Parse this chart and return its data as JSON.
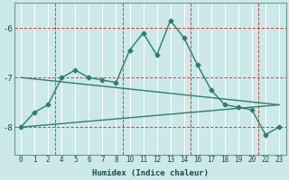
{
  "xlabel": "Humidex (Indice chaleur)",
  "bg_color": "#cce8e8",
  "line_color": "#2d7d70",
  "grid_color": "#ffffff",
  "red_line_color": "#cc4444",
  "xtick_positions": [
    0,
    1,
    2,
    3,
    4,
    5,
    6,
    7,
    8,
    9,
    10,
    11,
    12,
    13,
    14,
    15,
    16,
    17,
    18,
    19
  ],
  "xtick_labels": [
    "0",
    "1",
    "2",
    "4",
    "5",
    "6",
    "7",
    "8",
    "10",
    "11",
    "12",
    "13",
    "14",
    "16",
    "17",
    "18",
    "19",
    "20",
    "22",
    "23"
  ],
  "yticks": [
    -8,
    -7,
    -6
  ],
  "ylim": [
    -8.55,
    -5.5
  ],
  "xlim": [
    -0.5,
    19.5
  ],
  "red_vlines": [
    2.5,
    7.5,
    12.5,
    17.5
  ],
  "series1_x": [
    0,
    1,
    2,
    3,
    4,
    5,
    6,
    7,
    8,
    9,
    10,
    11,
    12,
    13,
    14,
    15,
    16,
    17,
    18,
    19
  ],
  "series1_y": [
    -8.0,
    -7.7,
    -7.55,
    -7.0,
    -6.85,
    -7.0,
    -7.05,
    -7.1,
    -6.45,
    -6.1,
    -6.55,
    -5.85,
    -6.2,
    -6.75,
    -7.25,
    -7.55,
    -7.6,
    -7.65,
    -8.15,
    -8.0
  ],
  "series2_x": [
    0,
    19
  ],
  "series2_y": [
    -7.0,
    -7.55
  ],
  "series3_x": [
    0,
    19
  ],
  "series3_y": [
    -8.0,
    -7.55
  ],
  "marker": "D",
  "markersize": 2.5,
  "linewidth": 1.0
}
